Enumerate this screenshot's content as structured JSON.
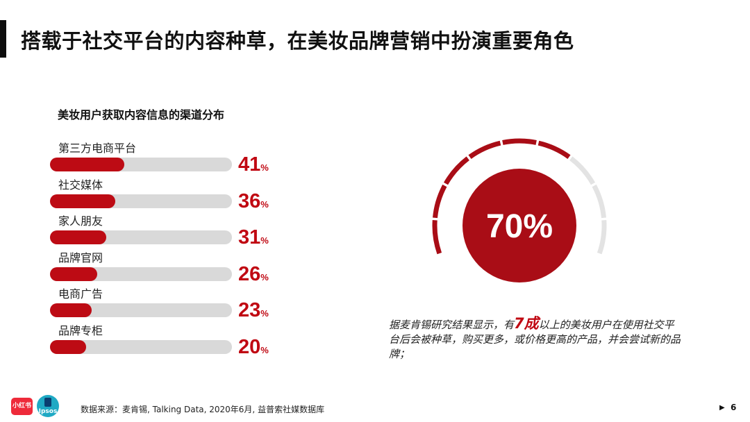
{
  "header": {
    "title": "搭载于社交平台的内容种草，在美妆品牌营销中扮演重要角色"
  },
  "chart_data": [
    {
      "type": "bar",
      "title": "美妆用户获取内容信息的渠道分布",
      "categories": [
        "第三方电商平台",
        "社交媒体",
        "家人朋友",
        "品牌官网",
        "电商广告",
        "品牌专柜"
      ],
      "values": [
        41,
        36,
        31,
        26,
        23,
        20
      ],
      "value_labels": [
        "41",
        "36",
        "31",
        "26",
        "23",
        "20"
      ],
      "unit": "%",
      "xlim": [
        0,
        100
      ],
      "colors": {
        "fill": "#bd0b14",
        "track": "#d9d9d9",
        "value": "#c00812"
      }
    },
    {
      "type": "gauge",
      "value": 70,
      "label": "70%",
      "range": [
        0,
        100
      ],
      "colors": {
        "filled": "#a90d16",
        "empty": "#e3e3e3",
        "center": "#a90d16"
      }
    }
  ],
  "note": {
    "before": "据麦肯锡研究结果显示，有",
    "highlight": "7成",
    "after": "以上的美妆用户在使用社交平台后会被种草，购买更多，或价格更高的产品，并会尝试新的品牌；"
  },
  "footer": {
    "logo_xhs": "小红书",
    "logo_ipsos": "Ipsos",
    "source": "数据来源：麦肯锡, Talking Data, 2020年6月, 益普索社媒数据库",
    "page_arrow": "▶",
    "page_number": "6"
  }
}
